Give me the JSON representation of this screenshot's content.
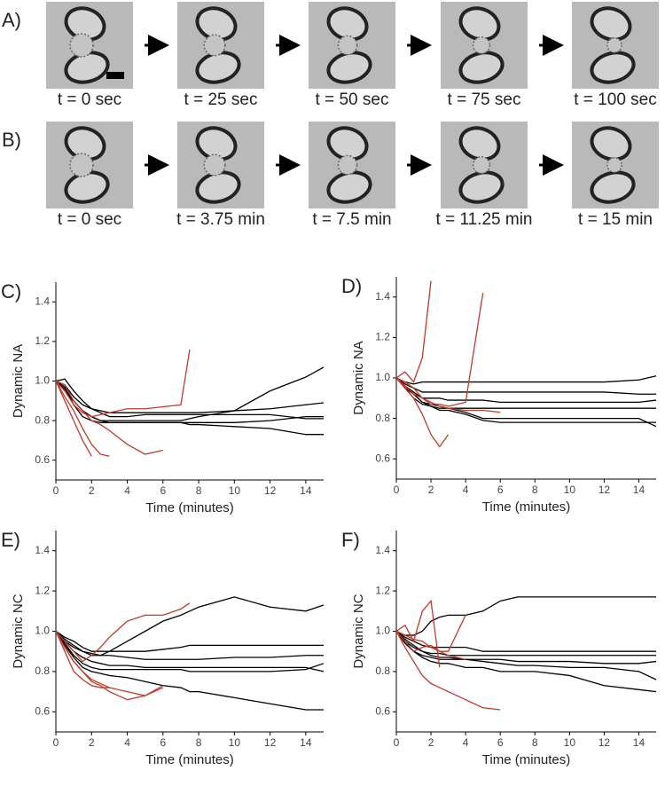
{
  "panels": [
    {
      "label": "A)",
      "times": [
        "t = 0 sec",
        "t = 25 sec",
        "t = 50 sec",
        "t = 75 sec",
        "t = 100 sec"
      ]
    },
    {
      "label": "B)",
      "times": [
        "t = 0 sec",
        "t = 3.75 min",
        "t = 7.5 min",
        "t = 11.25 min",
        "t = 15 min"
      ]
    }
  ],
  "chart_data": [
    {
      "type": "line",
      "label": "C)",
      "ylabel": "Dynamic NA",
      "xlabel": "Time (minutes)",
      "xlim": [
        0,
        15
      ],
      "ylim": [
        0.5,
        1.5
      ],
      "xticks": [
        0,
        2,
        4,
        6,
        8,
        10,
        12,
        14
      ],
      "yticks": [
        0.6,
        0.8,
        {
          "value": 1,
          "label": "1.0"
        },
        1.2,
        1.4
      ],
      "x": [
        0,
        0.5,
        1,
        1.5,
        2,
        2.5,
        3,
        4,
        5,
        6,
        7,
        7.5,
        8,
        10,
        12,
        14,
        15
      ],
      "series": [
        {
          "color": "#000000",
          "values": [
            1,
            0.95,
            0.9,
            0.85,
            0.82,
            0.8,
            0.8,
            0.8,
            0.8,
            0.8,
            0.8,
            0.81,
            0.82,
            0.85,
            0.95,
            1.02,
            1.07
          ]
        },
        {
          "color": "#000000",
          "values": [
            1,
            0.98,
            0.92,
            0.88,
            0.86,
            0.85,
            0.84,
            0.84,
            0.84,
            0.84,
            0.84,
            0.84,
            0.84,
            0.85,
            0.86,
            0.88,
            0.89
          ]
        },
        {
          "color": "#000000",
          "values": [
            1,
            0.97,
            0.88,
            0.82,
            0.8,
            0.79,
            0.79,
            0.79,
            0.79,
            0.79,
            0.79,
            0.79,
            0.79,
            0.79,
            0.8,
            0.82,
            0.82
          ]
        },
        {
          "color": "#000000",
          "values": [
            1,
            0.96,
            0.9,
            0.85,
            0.82,
            0.8,
            0.79,
            0.79,
            0.79,
            0.79,
            0.79,
            0.78,
            0.78,
            0.77,
            0.76,
            0.73,
            0.73
          ]
        },
        {
          "color": "#000000",
          "values": [
            1,
            1.01,
            0.95,
            0.9,
            0.86,
            0.84,
            0.82,
            0.82,
            0.83,
            0.83,
            0.83,
            0.83,
            0.83,
            0.83,
            0.83,
            0.81,
            0.81
          ]
        },
        {
          "color": "#c0392b",
          "values": [
            1,
            0.95,
            0.88,
            0.84,
            0.82,
            0.83,
            0.84,
            0.86,
            0.86,
            0.87,
            0.88,
            1.16,
            null,
            null,
            null,
            null,
            null
          ]
        },
        {
          "color": "#c0392b",
          "values": [
            1,
            0.9,
            0.8,
            0.7,
            0.62,
            null,
            null,
            null,
            null,
            null,
            null,
            null,
            null,
            null,
            null,
            null,
            null
          ]
        },
        {
          "color": "#c0392b",
          "values": [
            1,
            0.92,
            0.85,
            0.76,
            0.68,
            0.63,
            0.62,
            null,
            null,
            null,
            null,
            null,
            null,
            null,
            null,
            null,
            null
          ]
        },
        {
          "color": "#c0392b",
          "values": [
            1,
            0.98,
            0.9,
            0.85,
            0.8,
            0.78,
            0.75,
            0.68,
            0.63,
            0.65,
            null,
            null,
            null,
            null,
            null,
            null,
            null
          ]
        }
      ]
    },
    {
      "type": "line",
      "label": "D)",
      "ylabel": "Dynamic NA",
      "xlabel": "Time (minutes)",
      "xlim": [
        0,
        15
      ],
      "ylim": [
        0.5,
        1.5
      ],
      "xticks": [
        0,
        2,
        4,
        6,
        8,
        10,
        12,
        14
      ],
      "yticks": [
        0.6,
        0.8,
        {
          "value": 1,
          "label": "1.0"
        },
        1.2,
        1.4
      ],
      "x": [
        0,
        0.5,
        1,
        1.5,
        2,
        2.5,
        3,
        4,
        5,
        6,
        7,
        7.5,
        8,
        10,
        12,
        14,
        15
      ],
      "series": [
        {
          "color": "#000000",
          "values": [
            1,
            0.98,
            0.97,
            0.98,
            0.98,
            0.98,
            0.98,
            0.98,
            0.98,
            0.98,
            0.98,
            0.98,
            0.98,
            0.98,
            0.98,
            0.99,
            1.01
          ]
        },
        {
          "color": "#000000",
          "values": [
            1,
            0.97,
            0.95,
            0.93,
            0.93,
            0.93,
            0.93,
            0.93,
            0.93,
            0.93,
            0.93,
            0.93,
            0.93,
            0.93,
            0.93,
            0.92,
            0.92
          ]
        },
        {
          "color": "#000000",
          "values": [
            1,
            0.96,
            0.93,
            0.9,
            0.9,
            0.9,
            0.89,
            0.89,
            0.89,
            0.88,
            0.88,
            0.88,
            0.88,
            0.88,
            0.88,
            0.88,
            0.89
          ]
        },
        {
          "color": "#000000",
          "values": [
            1,
            0.95,
            0.92,
            0.88,
            0.87,
            0.86,
            0.85,
            0.85,
            0.85,
            0.85,
            0.85,
            0.85,
            0.85,
            0.85,
            0.85,
            0.85,
            0.85
          ]
        },
        {
          "color": "#000000",
          "values": [
            1,
            0.95,
            0.9,
            0.87,
            0.86,
            0.84,
            0.84,
            0.82,
            0.79,
            0.78,
            0.78,
            0.78,
            0.78,
            0.78,
            0.78,
            0.78,
            0.78
          ]
        },
        {
          "color": "#000000",
          "values": [
            1,
            0.96,
            0.92,
            0.88,
            0.86,
            0.85,
            0.85,
            0.83,
            0.8,
            0.8,
            0.8,
            0.8,
            0.8,
            0.8,
            0.8,
            0.8,
            0.76
          ]
        },
        {
          "color": "#c0392b",
          "values": [
            1,
            1.03,
            0.98,
            1.1,
            1.48,
            null,
            null,
            null,
            null,
            null,
            null,
            null,
            null,
            null,
            null,
            null,
            null
          ]
        },
        {
          "color": "#c0392b",
          "values": [
            1,
            0.98,
            0.95,
            0.9,
            0.87,
            0.87,
            0.86,
            0.88,
            1.42,
            null,
            null,
            null,
            null,
            null,
            null,
            null,
            null
          ]
        },
        {
          "color": "#c0392b",
          "values": [
            1,
            0.95,
            0.9,
            0.82,
            0.72,
            0.66,
            0.72,
            null,
            null,
            null,
            null,
            null,
            null,
            null,
            null,
            null,
            null
          ]
        },
        {
          "color": "#c0392b",
          "values": [
            1,
            0.96,
            0.92,
            0.9,
            0.88,
            0.86,
            0.85,
            0.84,
            0.84,
            0.83,
            null,
            null,
            null,
            null,
            null,
            null,
            null
          ]
        }
      ]
    },
    {
      "type": "line",
      "label": "E)",
      "ylabel": "Dynamic NC",
      "xlabel": "Time (minutes)",
      "xlim": [
        0,
        15
      ],
      "ylim": [
        0.5,
        1.5
      ],
      "xticks": [
        0,
        2,
        4,
        6,
        8,
        10,
        12,
        14
      ],
      "yticks": [
        0.6,
        0.8,
        {
          "value": 1,
          "label": "1.0"
        },
        1.2,
        1.4
      ],
      "x": [
        0,
        0.5,
        1,
        1.5,
        2,
        2.5,
        3,
        4,
        5,
        6,
        7,
        7.5,
        8,
        10,
        12,
        14,
        15
      ],
      "series": [
        {
          "color": "#000000",
          "values": [
            1,
            0.95,
            0.92,
            0.9,
            0.88,
            0.88,
            0.9,
            0.95,
            1.0,
            1.05,
            1.08,
            1.1,
            1.12,
            1.17,
            1.12,
            1.1,
            1.13
          ]
        },
        {
          "color": "#000000",
          "values": [
            1,
            0.97,
            0.95,
            0.92,
            0.9,
            0.9,
            0.9,
            0.9,
            0.9,
            0.91,
            0.92,
            0.93,
            0.93,
            0.93,
            0.93,
            0.93,
            0.93
          ]
        },
        {
          "color": "#000000",
          "values": [
            1,
            0.96,
            0.93,
            0.9,
            0.89,
            0.88,
            0.88,
            0.87,
            0.86,
            0.86,
            0.86,
            0.86,
            0.86,
            0.87,
            0.87,
            0.88,
            0.88
          ]
        },
        {
          "color": "#000000",
          "values": [
            1,
            0.95,
            0.9,
            0.87,
            0.85,
            0.84,
            0.83,
            0.83,
            0.82,
            0.82,
            0.82,
            0.82,
            0.82,
            0.82,
            0.82,
            0.82,
            0.8
          ]
        },
        {
          "color": "#000000",
          "values": [
            1,
            0.94,
            0.88,
            0.84,
            0.82,
            0.81,
            0.81,
            0.81,
            0.81,
            0.81,
            0.81,
            0.8,
            0.8,
            0.8,
            0.8,
            0.81,
            0.84
          ]
        },
        {
          "color": "#000000",
          "values": [
            1,
            0.93,
            0.87,
            0.82,
            0.8,
            0.79,
            0.78,
            0.77,
            0.75,
            0.73,
            0.72,
            0.7,
            0.7,
            0.67,
            0.64,
            0.61,
            0.61
          ]
        },
        {
          "color": "#c0392b",
          "values": [
            1,
            0.95,
            0.9,
            0.85,
            0.88,
            0.92,
            0.97,
            1.05,
            1.08,
            1.08,
            1.11,
            1.14,
            null,
            null,
            null,
            null,
            null
          ]
        },
        {
          "color": "#c0392b",
          "values": [
            1,
            0.92,
            0.85,
            0.8,
            0.76,
            0.74,
            0.72,
            0.7,
            0.68,
            0.73,
            null,
            null,
            null,
            null,
            null,
            null,
            null
          ]
        },
        {
          "color": "#c0392b",
          "values": [
            1,
            0.9,
            0.8,
            0.76,
            0.73,
            0.72,
            0.72,
            null,
            null,
            null,
            null,
            null,
            null,
            null,
            null,
            null,
            null
          ]
        },
        {
          "color": "#c0392b",
          "values": [
            1,
            0.92,
            0.85,
            0.8,
            0.75,
            0.73,
            0.7,
            0.66,
            0.68,
            0.72,
            null,
            null,
            null,
            null,
            null,
            null,
            null
          ]
        }
      ]
    },
    {
      "type": "line",
      "label": "F)",
      "ylabel": "Dynamic NC",
      "xlabel": "Time (minutes)",
      "xlim": [
        0,
        15
      ],
      "ylim": [
        0.5,
        1.5
      ],
      "xticks": [
        0,
        2,
        4,
        6,
        8,
        10,
        12,
        14
      ],
      "yticks": [
        0.6,
        0.8,
        {
          "value": 1,
          "label": "1.0"
        },
        1.2,
        1.4
      ],
      "x": [
        0,
        0.5,
        1,
        1.5,
        2,
        2.5,
        3,
        4,
        5,
        6,
        7,
        7.5,
        8,
        10,
        12,
        14,
        15
      ],
      "series": [
        {
          "color": "#000000",
          "values": [
            1,
            0.98,
            0.98,
            1.0,
            1.05,
            1.07,
            1.08,
            1.08,
            1.1,
            1.15,
            1.17,
            1.17,
            1.17,
            1.17,
            1.17,
            1.17,
            1.17
          ]
        },
        {
          "color": "#000000",
          "values": [
            1,
            0.97,
            0.95,
            0.93,
            0.92,
            0.92,
            0.92,
            0.92,
            0.9,
            0.9,
            0.9,
            0.9,
            0.9,
            0.9,
            0.9,
            0.9,
            0.9
          ]
        },
        {
          "color": "#000000",
          "values": [
            1,
            0.96,
            0.93,
            0.9,
            0.89,
            0.89,
            0.88,
            0.88,
            0.88,
            0.88,
            0.88,
            0.88,
            0.88,
            0.88,
            0.88,
            0.88,
            0.88
          ]
        },
        {
          "color": "#000000",
          "values": [
            1,
            0.95,
            0.92,
            0.9,
            0.88,
            0.87,
            0.87,
            0.86,
            0.86,
            0.86,
            0.85,
            0.85,
            0.85,
            0.85,
            0.84,
            0.84,
            0.85
          ]
        },
        {
          "color": "#000000",
          "values": [
            1,
            0.95,
            0.9,
            0.88,
            0.87,
            0.86,
            0.86,
            0.86,
            0.85,
            0.84,
            0.83,
            0.83,
            0.83,
            0.82,
            0.82,
            0.8,
            0.76
          ]
        },
        {
          "color": "#000000",
          "values": [
            1,
            0.94,
            0.9,
            0.87,
            0.85,
            0.84,
            0.84,
            0.82,
            0.82,
            0.8,
            0.8,
            0.8,
            0.8,
            0.78,
            0.73,
            0.71,
            0.7
          ]
        },
        {
          "color": "#c0392b",
          "values": [
            1,
            1.03,
            0.95,
            1.1,
            1.15,
            0.82,
            null,
            null,
            null,
            null,
            null,
            null,
            null,
            null,
            null,
            null,
            null
          ]
        },
        {
          "color": "#c0392b",
          "values": [
            1,
            0.95,
            0.9,
            0.92,
            0.93,
            0.9,
            0.9,
            1.08,
            null,
            null,
            null,
            null,
            null,
            null,
            null,
            null,
            null
          ]
        },
        {
          "color": "#c0392b",
          "values": [
            1,
            0.92,
            0.85,
            0.78,
            0.74,
            0.72,
            0.7,
            0.66,
            0.62,
            0.61,
            null,
            null,
            null,
            null,
            null,
            null,
            null
          ]
        },
        {
          "color": "#c0392b",
          "values": [
            1,
            0.98,
            0.96,
            0.95,
            0.92,
            0.9,
            0.88,
            0.86,
            null,
            null,
            null,
            null,
            null,
            null,
            null,
            null,
            null
          ]
        }
      ]
    }
  ]
}
